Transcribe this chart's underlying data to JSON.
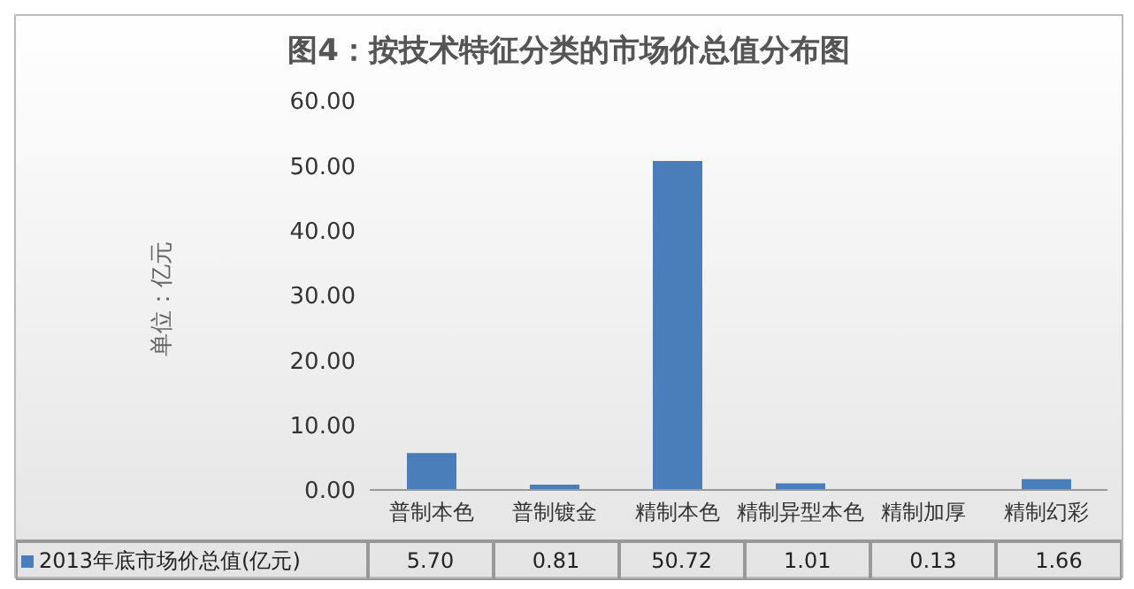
{
  "chart_data": {
    "type": "bar",
    "title": "图4：按技术特征分类的市场价总值分布图",
    "ylabel": "单位：亿元",
    "categories": [
      "普制本色",
      "普制镀金",
      "精制本色",
      "精制异型本色",
      "精制加厚",
      "精制幻彩"
    ],
    "series": [
      {
        "name": "2013年底市场价总值(亿元)",
        "color": "#4a7ebb",
        "values": [
          5.7,
          0.81,
          50.72,
          1.01,
          0.13,
          1.66
        ],
        "value_labels": [
          "5.70",
          "0.81",
          "50.72",
          "1.01",
          "0.13",
          "1.66"
        ]
      }
    ],
    "ylim": [
      0,
      60
    ],
    "yticks": [
      {
        "value": 0,
        "label": "0.00"
      },
      {
        "value": 10,
        "label": "10.00"
      },
      {
        "value": 20,
        "label": "20.00"
      },
      {
        "value": 30,
        "label": "30.00"
      },
      {
        "value": 40,
        "label": "40.00"
      },
      {
        "value": 50,
        "label": "50.00"
      },
      {
        "value": 60,
        "label": "60.00"
      }
    ],
    "grid": false,
    "legend": "bottom"
  }
}
